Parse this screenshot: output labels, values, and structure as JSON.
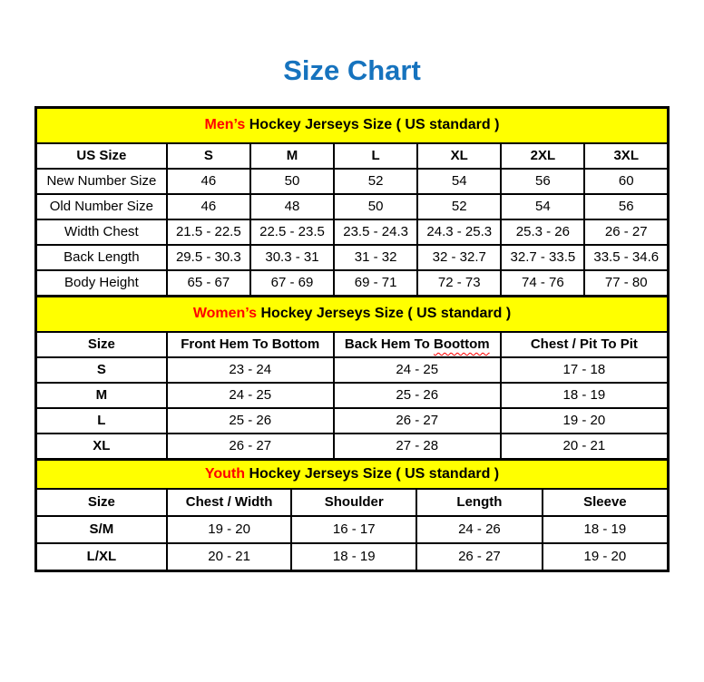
{
  "title": "Size Chart",
  "colors": {
    "title_blue": "#1673BE",
    "band_yellow": "#FFFF00",
    "highlight_red": "#FF0000",
    "border_black": "#000000",
    "misspell_underline_red": "#FF0000"
  },
  "sections": [
    {
      "name": "men",
      "band": {
        "highlight": "Men’s",
        "rest": "Hockey Jerseys Size ( US standard )"
      },
      "columns": [
        "US Size",
        "S",
        "M",
        "L",
        "XL",
        "2XL",
        "3XL"
      ],
      "rows": [
        {
          "label": "New Number Size",
          "values": [
            "46",
            "50",
            "52",
            "54",
            "56",
            "60"
          ]
        },
        {
          "label": "Old Number Size",
          "values": [
            "46",
            "48",
            "50",
            "52",
            "54",
            "56"
          ]
        },
        {
          "label": "Width Chest",
          "values": [
            "21.5 - 22.5",
            "22.5 - 23.5",
            "23.5 - 24.3",
            "24.3 - 25.3",
            "25.3 - 26",
            "26 - 27"
          ]
        },
        {
          "label": "Back Length",
          "values": [
            "29.5 - 30.3",
            "30.3 - 31",
            "31 - 32",
            "32 - 32.7",
            "32.7 - 33.5",
            "33.5 - 34.6"
          ]
        },
        {
          "label": "Body Height",
          "values": [
            "65 - 67",
            "67 - 69",
            "69 - 71",
            "72 - 73",
            "74 - 76",
            "77 - 80"
          ]
        }
      ]
    },
    {
      "name": "women",
      "band": {
        "highlight": "Women’s",
        "rest": "Hockey Jerseys Size ( US standard )"
      },
      "columns": [
        "Size",
        "Front Hem To Bottom",
        {
          "pre": "Back Hem To ",
          "misspelled": "Boottom"
        },
        "Chest / Pit To Pit"
      ],
      "rows": [
        {
          "label": "S",
          "values": [
            "23 - 24",
            "24 - 25",
            "17 - 18"
          ]
        },
        {
          "label": "M",
          "values": [
            "24 - 25",
            "25 - 26",
            "18 - 19"
          ]
        },
        {
          "label": "L",
          "values": [
            "25 - 26",
            "26 - 27",
            "19 - 20"
          ]
        },
        {
          "label": "XL",
          "values": [
            "26 - 27",
            "27 - 28",
            "20 - 21"
          ]
        }
      ]
    },
    {
      "name": "youth",
      "band": {
        "highlight": "Youth",
        "rest": "Hockey Jerseys Size ( US standard )"
      },
      "columns": [
        "Size",
        "Chest / Width",
        "Shoulder",
        "Length",
        "Sleeve"
      ],
      "rows": [
        {
          "label": "S/M",
          "values": [
            "19 - 20",
            "16 - 17",
            "24 - 26",
            "18 - 19"
          ]
        },
        {
          "label": "L/XL",
          "values": [
            "20 - 21",
            "18 - 19",
            "26 - 27",
            "19 - 20"
          ]
        }
      ]
    }
  ]
}
